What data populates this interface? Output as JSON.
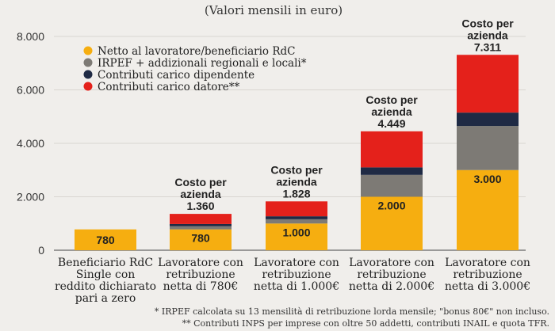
{
  "chart_data": {
    "type": "bar",
    "stacked": true,
    "subtitle": "(Valori mensili in euro)",
    "ylim": [
      0,
      8000
    ],
    "yticks": [
      "0",
      "2.000",
      "4.000",
      "6.000",
      "8.000"
    ],
    "ytick_values": [
      0,
      2000,
      4000,
      6000,
      8000
    ],
    "categories": [
      [
        "Beneficiario RdC",
        "Single con",
        "reddito dichiarato",
        "pari a zero"
      ],
      [
        "Lavoratore con",
        "retribuzione",
        "netta di 780€"
      ],
      [
        "Lavoratore con",
        "retribuzione",
        "netta di 1.000€"
      ],
      [
        "Lavoratore con",
        "retribuzione",
        "netta di 2.000€"
      ],
      [
        "Lavoratore con",
        "retribuzione",
        "netta di 3.000€"
      ]
    ],
    "series": [
      {
        "name": "Netto al lavoratore/beneficiario RdC",
        "color": "#f6ae10",
        "values": [
          780,
          780,
          1000,
          2000,
          3000
        ]
      },
      {
        "name": "IRPEF + addizionali regionali e locali*",
        "color": "#7d7a75",
        "values": [
          0,
          120,
          160,
          820,
          1650
        ]
      },
      {
        "name": "Contributi carico dipendente",
        "color": "#1f2a44",
        "values": [
          0,
          80,
          110,
          280,
          500
        ]
      },
      {
        "name": "Contributi carico datore**",
        "color": "#e4211b",
        "values": [
          0,
          380,
          558,
          1349,
          2161
        ]
      }
    ],
    "bar_labels": [
      "780",
      "780",
      "1.000",
      "2.000",
      "3.000"
    ],
    "totals": [
      null,
      1360,
      1828,
      4449,
      7311
    ],
    "cost_labels": [
      null,
      [
        "Costo per",
        "azienda",
        "1.360"
      ],
      [
        "Costo per",
        "azienda",
        "1.828"
      ],
      [
        "Costo per",
        "azienda",
        "4.449"
      ],
      [
        "Costo per",
        "azienda",
        "7.311"
      ]
    ],
    "legend_position": "top-left"
  },
  "footnotes": [
    "* IRPEF calcolata su 13 mensilità di retribuzione lorda mensile;  \"bonus 80€\" non incluso.",
    "** Contributi INPS per imprese con oltre 50 addetti, contributi INAIL e quota TFR."
  ]
}
